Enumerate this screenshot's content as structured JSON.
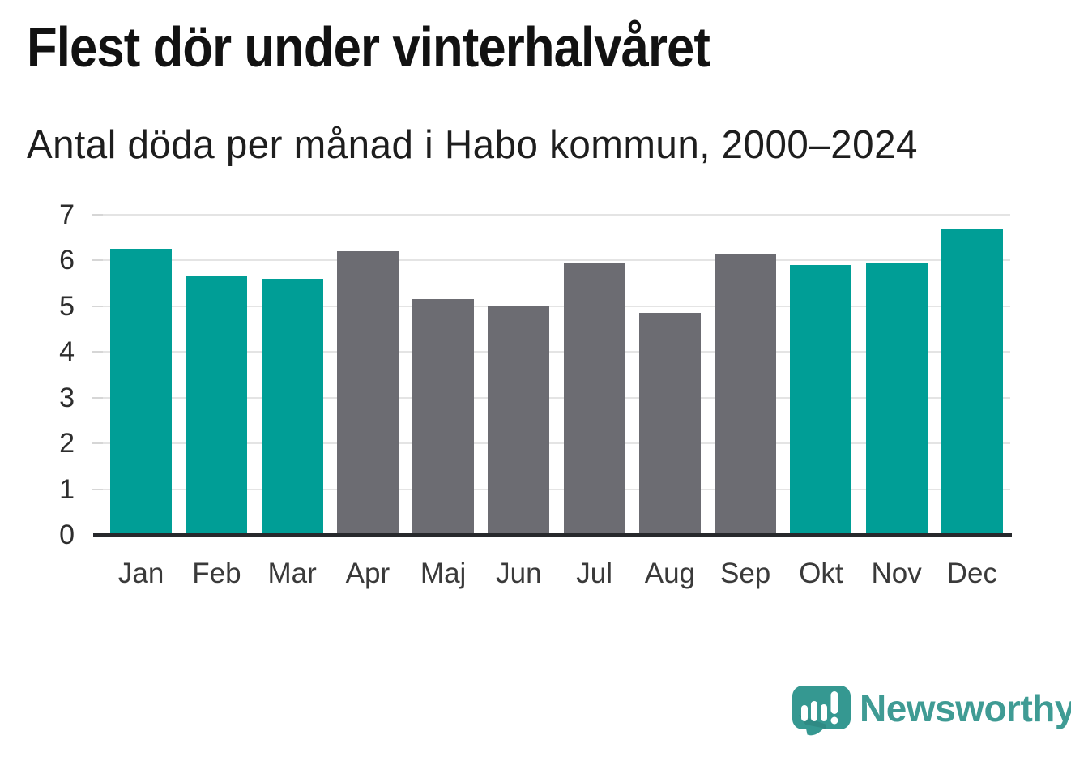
{
  "header": {
    "title": "Flest dör under vinterhalvåret",
    "subtitle": "Antal döda per månad i Habo kommun, 2000–2024"
  },
  "chart_data": {
    "type": "bar",
    "title": "Flest dör under vinterhalvåret",
    "subtitle": "Antal döda per månad i Habo kommun, 2000–2024",
    "categories": [
      "Jan",
      "Feb",
      "Mar",
      "Apr",
      "Maj",
      "Jun",
      "Jul",
      "Aug",
      "Sep",
      "Okt",
      "Nov",
      "Dec"
    ],
    "values": [
      6.25,
      5.65,
      5.6,
      6.2,
      5.15,
      5.0,
      5.95,
      4.85,
      6.15,
      5.9,
      5.95,
      6.7
    ],
    "bar_colors": [
      "teal",
      "teal",
      "teal",
      "gray",
      "gray",
      "gray",
      "gray",
      "gray",
      "gray",
      "teal",
      "teal",
      "teal"
    ],
    "colors": {
      "teal": "#009E96",
      "gray": "#6C6C72"
    },
    "ylim": [
      0,
      7
    ],
    "yticks": [
      0,
      1,
      2,
      3,
      4,
      5,
      6,
      7
    ],
    "grid": true,
    "legend": "none",
    "xlabel": "",
    "ylabel": "",
    "axis_color": "#27292C",
    "gridline_color": "#E4E4E4"
  },
  "footer": {
    "brand": "Newsworthy",
    "brand_color": "#3F9B94",
    "logo_icon_color": "#359891",
    "logo_icon": "speech-bubble-bar-chart-exclamation"
  }
}
